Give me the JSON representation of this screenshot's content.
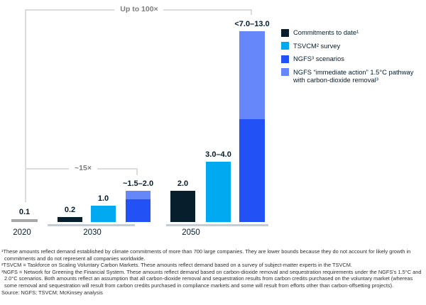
{
  "annotations": {
    "top_bracket": "Up to 100×",
    "mid_bracket": "~15×"
  },
  "chart_data": {
    "type": "bar",
    "title": "",
    "xlabel": "",
    "ylabel": "",
    "categories": [
      "2020",
      "2030",
      "2050"
    ],
    "series": [
      {
        "name": "Commitments to date¹",
        "color": "#071F2D",
        "values": [
          0.1,
          0.2,
          2.0
        ]
      },
      {
        "name": "TSVCM² survey",
        "color": "#00A9F0",
        "values": [
          null,
          1.0,
          4.0
        ]
      },
      {
        "name": "NGFS³ scenarios",
        "color": "#2251F5",
        "values": [
          null,
          1.5,
          7.0
        ]
      },
      {
        "name": "NGFS “immediate action” 1.5°C pathway with carbon-dioxide removal³",
        "color": "#6687FA",
        "values": [
          null,
          0.5,
          6.0
        ]
      }
    ],
    "bar_value_labels": [
      [
        "0.1"
      ],
      [
        "0.2",
        "1.0",
        "~1.5–2.0"
      ],
      [
        "2.0",
        "3.0–4.0",
        "<7.0–13.0"
      ]
    ],
    "annotations": [
      "Up to 100×",
      "~15×"
    ],
    "legend_position": "right",
    "grid": false,
    "palette": {
      "dark": "#071F2D",
      "cyan": "#00A9F0",
      "blue": "#2251F5",
      "light": "#6687FA",
      "gray": "#A8A8A8"
    },
    "render": {
      "bottom_y": 313,
      "groups": [
        {
          "year": "2020",
          "year_cx": 31,
          "baseline": null,
          "bars": [
            {
              "x": 16,
              "w": 37,
              "label": "0.1",
              "segments": [
                {
                  "color": "gray",
                  "px": 4
                }
              ]
            }
          ]
        },
        {
          "year": "2030",
          "year_cx": 130,
          "baseline": {
            "x": 67,
            "w": 123
          },
          "bars": [
            {
              "x": 81,
              "w": 35,
              "label": "0.2",
              "segments": [
                {
                  "color": "dark",
                  "px": 7
                }
              ]
            },
            {
              "x": 128,
              "w": 35,
              "label": "1.0",
              "segments": [
                {
                  "color": "cyan",
                  "px": 23
                }
              ]
            },
            {
              "x": 177,
              "w": 35,
              "label": "~1.5–2.0",
              "segments": [
                {
                  "color": "light",
                  "px": 12
                },
                {
                  "color": "blue",
                  "px": 32
                }
              ]
            }
          ]
        },
        {
          "year": "2050",
          "year_cx": 269,
          "baseline": {
            "x": 234,
            "w": 144
          },
          "bars": [
            {
              "x": 240,
              "w": 35,
              "label": "2.0",
              "segments": [
                {
                  "color": "dark",
                  "px": 44
                }
              ]
            },
            {
              "x": 290,
              "w": 35,
              "label": "3.0–4.0",
              "segments": [
                {
                  "color": "cyan",
                  "px": 85
                }
              ]
            },
            {
              "x": 337,
              "w": 36,
              "label": "<7.0–13.0",
              "segments": [
                {
                  "color": "light",
                  "px": 124
                },
                {
                  "color": "blue",
                  "px": 145
                }
              ]
            }
          ]
        }
      ]
    }
  },
  "legend": {
    "items": [
      {
        "color": "dark",
        "label": "Commitments to date¹"
      },
      {
        "color": "cyan",
        "label": "TSVCM² survey"
      },
      {
        "color": "blue",
        "label": "NGFS³ scenarios"
      },
      {
        "color": "light",
        "label": "NGFS “immediate action” 1.5°C pathway with carbon-dioxide removal³"
      }
    ]
  },
  "footnotes": {
    "items": [
      "¹These amounts reflect demand established by climate commitments of more than 700 large companies. They are lower bounds because they do not account for likely growth in commitments and do not represent all companies worldwide.",
      "²TSVCM = Taskforce on Scaling Voluntary Carbon Markets. These amounts reflect demand based on a survey of subject-matter experts in the TSVCM.",
      "³NGFS = Network for Greening the Financial System. These amounts reflect demand based on carbon-dioxide removal and sequestration requirements under the NGFS's 1.5°C and 2.0°C scenarios. Both amounts reflect an assumption that all carbon-dioxide removal and sequestration results from carbon credits purchased on the voluntary market (whereas some removal and sequestration will result from carbon credits purchased in compliance markets and some will result from efforts other than carbon-offsetting projects)."
    ],
    "source": "Source: NGFS; TSVCM; McKinsey analysis"
  }
}
